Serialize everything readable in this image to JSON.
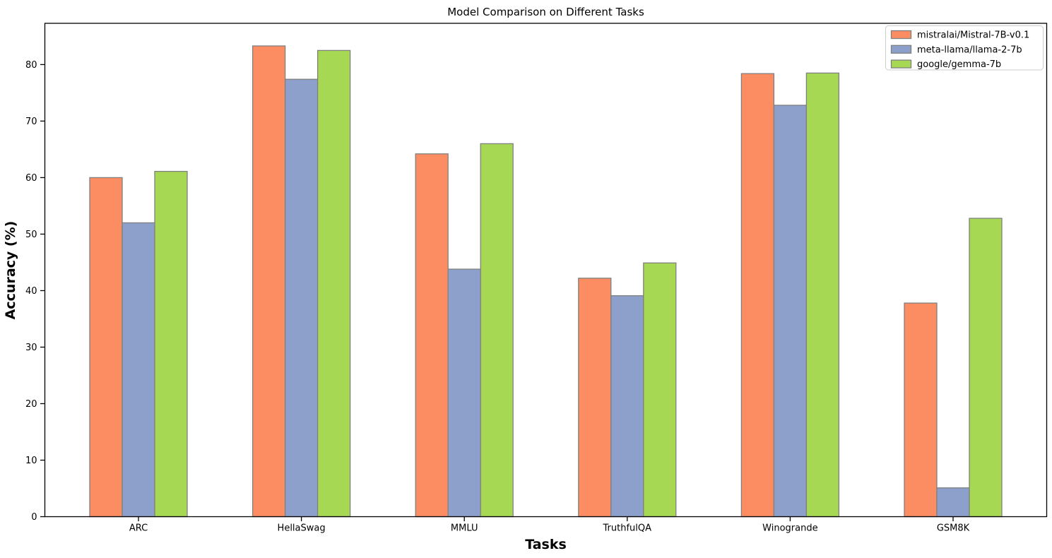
{
  "chart_data": {
    "type": "bar",
    "title": "Model Comparison on Different Tasks",
    "xlabel": "Tasks",
    "ylabel": "Accuracy (%)",
    "categories": [
      "ARC",
      "HellaSwag",
      "MMLU",
      "TruthfulQA",
      "Winogrande",
      "GSM8K"
    ],
    "series": [
      {
        "name": "mistralai/Mistral-7B-v0.1",
        "color": "#fc8d62",
        "values": [
          60.0,
          83.3,
          64.2,
          42.2,
          78.4,
          37.8
        ]
      },
      {
        "name": "meta-llama/llama-2-7b",
        "color": "#8da0cb",
        "values": [
          52.0,
          77.4,
          43.8,
          39.1,
          72.8,
          5.1
        ]
      },
      {
        "name": "google/gemma-7b",
        "color": "#a6d854",
        "values": [
          61.1,
          82.5,
          66.0,
          44.9,
          78.5,
          52.8
        ]
      }
    ],
    "yticks": [
      0,
      10,
      20,
      30,
      40,
      50,
      60,
      70,
      80
    ],
    "ylim": [
      0,
      87.3
    ],
    "grid": false,
    "legend_position": "upper right",
    "bar_edge_color": "#808080",
    "spine_color": "#000000",
    "legend_frame_color": "#cccccc",
    "background": "#ffffff",
    "text_color": "#000000"
  }
}
